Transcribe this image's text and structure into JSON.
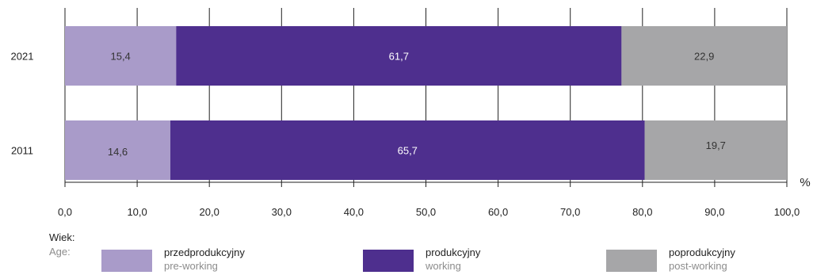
{
  "chart_data": {
    "type": "bar",
    "orientation": "horizontal",
    "stacked": true,
    "categories": [
      "2021",
      "2011"
    ],
    "series": [
      {
        "name": "przedprodukcyjny",
        "name_en": "pre-working",
        "color": "#a99bc9",
        "label_color": "#333333",
        "values": [
          15.4,
          14.6
        ],
        "labels": [
          "15,4",
          "14,6"
        ]
      },
      {
        "name": "produkcyjny",
        "name_en": "working",
        "color": "#4e2f8e",
        "label_color": "#ffffff",
        "values": [
          61.7,
          65.7
        ],
        "labels": [
          "61,7",
          "65,7"
        ]
      },
      {
        "name": "poprodukcyjny",
        "name_en": "post-working",
        "color": "#a6a6a8",
        "label_color": "#333333",
        "values": [
          22.9,
          19.7
        ],
        "labels": [
          "22,9",
          "19,7"
        ]
      }
    ],
    "xlim": [
      0,
      100
    ],
    "xticks": [
      "0,0",
      "10,0",
      "20,0",
      "30,0",
      "40,0",
      "50,0",
      "60,0",
      "70,0",
      "80,0",
      "90,0",
      "100,0"
    ],
    "xunit": "%",
    "grid": true
  },
  "legend": {
    "title_pl": "Wiek:",
    "title_en": "Age:"
  }
}
